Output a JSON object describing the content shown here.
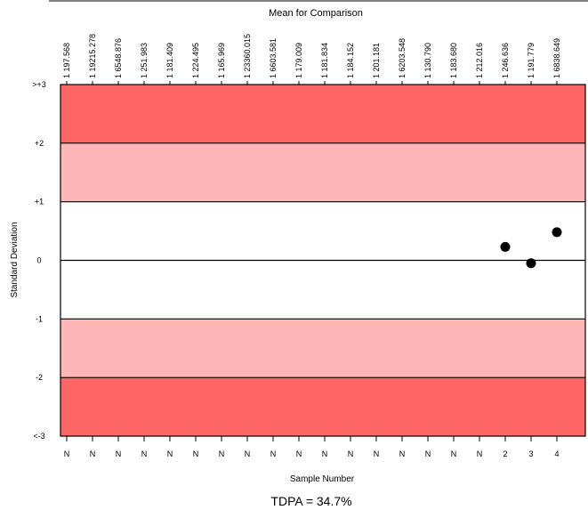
{
  "chart_data": {
    "type": "scatter",
    "title": "Mean for Comparison",
    "xlabel": "Sample Number",
    "ylabel": "Standard Deviation",
    "footer": "TDPA = 34.7%",
    "top_labels": [
      "1 197.568",
      "1 19215.278",
      "1 6548.876",
      "1 251.983",
      "1 181.409",
      "1 224.495",
      "1 165.969",
      "1 23360.015",
      "1 6603.581",
      "1 179.009",
      "1 181.834",
      "1 184.152",
      "1 201.181",
      "1 6203.548",
      "1 130.790",
      "1 183.680",
      "1 212.016",
      "1 246.636",
      "1 191.779",
      "1 6838.649"
    ],
    "categories": [
      "N",
      "N",
      "N",
      "N",
      "N",
      "N",
      "N",
      "N",
      "N",
      "N",
      "N",
      "N",
      "N",
      "N",
      "N",
      "N",
      "N",
      "2",
      "3",
      "4"
    ],
    "y_ticks": [
      {
        "label": ">+3",
        "value": 3
      },
      {
        "label": "+2",
        "value": 2
      },
      {
        "label": "+1",
        "value": 1
      },
      {
        "label": "0",
        "value": 0
      },
      {
        "label": "-1",
        "value": -1
      },
      {
        "label": "-2",
        "value": -2
      },
      {
        "label": "<-3",
        "value": -3
      }
    ],
    "ylim": [
      -3,
      3
    ],
    "bands": [
      {
        "from": 2,
        "to": 3,
        "color": "#ff6666"
      },
      {
        "from": 1,
        "to": 2,
        "color": "#ffb6b6"
      },
      {
        "from": -1,
        "to": 1,
        "color": "#ffffff"
      },
      {
        "from": -2,
        "to": -1,
        "color": "#ffb6b6"
      },
      {
        "from": -3,
        "to": -2,
        "color": "#ff6666"
      }
    ],
    "points": [
      {
        "index": 18,
        "y": 0.23
      },
      {
        "index": 19,
        "y": -0.05
      },
      {
        "index": 20,
        "y": 0.48
      }
    ],
    "point_color": "#000000",
    "grid": false
  }
}
